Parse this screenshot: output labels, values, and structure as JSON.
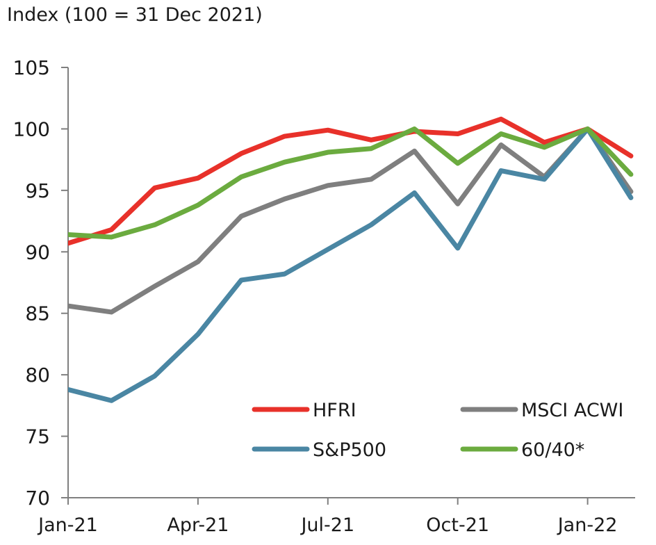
{
  "chart_data": {
    "type": "line",
    "title": "Index (100 = 31 Dec 2021)",
    "xlabel": "",
    "ylabel": "",
    "ylim": [
      70,
      105
    ],
    "yticks": [
      70,
      75,
      80,
      85,
      90,
      95,
      100,
      105
    ],
    "x": [
      "2021-01",
      "2021-02",
      "2021-03",
      "2021-04",
      "2021-05",
      "2021-06",
      "2021-07",
      "2021-08",
      "2021-09",
      "2021-10",
      "2021-11",
      "2021-12",
      "2022-01",
      "2022-02"
    ],
    "xtick_labels": [
      {
        "label": "Jan-21",
        "at": "2021-01"
      },
      {
        "label": "Apr-21",
        "at": "2021-04"
      },
      {
        "label": "Jul-21",
        "at": "2021-07"
      },
      {
        "label": "Oct-21",
        "at": "2021-10"
      },
      {
        "label": "Jan-22",
        "at": "2022-01"
      }
    ],
    "grid": false,
    "legend": "bottom-right",
    "series": [
      {
        "name": "HFRI",
        "color": "#e8312a",
        "values": [
          90.7,
          91.8,
          95.2,
          96.0,
          98.0,
          99.4,
          99.9,
          99.1,
          99.8,
          99.6,
          100.8,
          98.9,
          100.0,
          97.8
        ]
      },
      {
        "name": "MSCI ACWI",
        "color": "#7f7f7f",
        "values": [
          85.6,
          85.1,
          87.2,
          89.2,
          92.9,
          94.3,
          95.4,
          95.9,
          98.2,
          93.9,
          98.7,
          96.1,
          100.0,
          94.9
        ]
      },
      {
        "name": "S&P500",
        "color": "#4a86a3",
        "values": [
          78.8,
          77.9,
          79.9,
          83.3,
          87.7,
          88.2,
          90.2,
          92.2,
          94.8,
          90.3,
          96.6,
          95.9,
          100.0,
          94.4
        ]
      },
      {
        "name": "60/40*",
        "color": "#6bab3f",
        "values": [
          91.4,
          91.2,
          92.2,
          93.8,
          96.1,
          97.3,
          98.1,
          98.4,
          100.0,
          97.2,
          99.6,
          98.5,
          100.0,
          96.3
        ]
      }
    ]
  }
}
